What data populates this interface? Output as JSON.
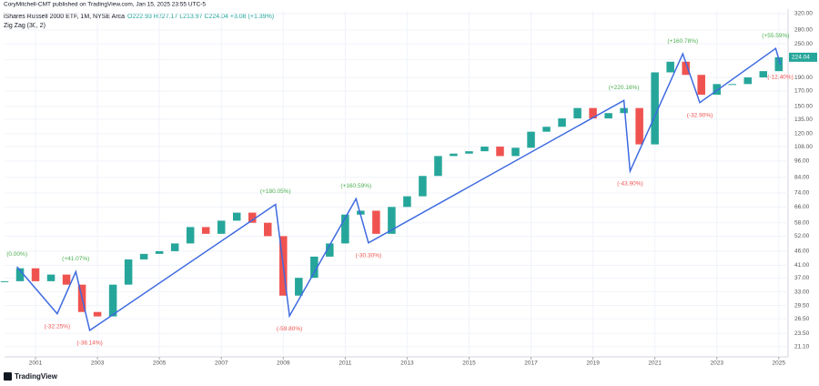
{
  "header": {
    "author": "CoryMitchell-CMT published on TradingView.com, Jan 15, 2025 23:55 UTC-5",
    "symbol": "iShares Russell 2000 ETF, 1M, NYSE Arca",
    "ohlc": "O222.93 H227.17 L213.97 C224.04 +3.08 (+1.39%)",
    "indicator": "Zig Zag (30, 2)"
  },
  "chart_data": {
    "type": "candlestick",
    "log_scale": true,
    "grid": true,
    "color_up": "#26a69a",
    "color_down": "#ef5350",
    "x": [
      2000.0,
      2000.5,
      2001.0,
      2001.5,
      2002.0,
      2002.5,
      2003.0,
      2003.5,
      2004.0,
      2004.5,
      2005.0,
      2005.5,
      2006.0,
      2006.5,
      2007.0,
      2007.5,
      2008.0,
      2008.5,
      2009.0,
      2009.5,
      2010.0,
      2010.5,
      2011.0,
      2011.5,
      2012.0,
      2012.5,
      2013.0,
      2013.5,
      2014.0,
      2014.5,
      2015.0,
      2015.5,
      2016.0,
      2016.5,
      2017.0,
      2017.5,
      2018.0,
      2018.5,
      2019.0,
      2019.5,
      2020.0,
      2020.5,
      2021.0,
      2021.5,
      2022.0,
      2022.5,
      2023.0,
      2023.5,
      2024.0,
      2024.5,
      2025.0
    ],
    "values": [
      36,
      40,
      36,
      38,
      35,
      28,
      27,
      35,
      43,
      45,
      46,
      49,
      56,
      53,
      59,
      63,
      58,
      52,
      32,
      37,
      44,
      49,
      62,
      64,
      53,
      66,
      72,
      85,
      100,
      102,
      104,
      108,
      100,
      107,
      122,
      127,
      136,
      148,
      136,
      142,
      148,
      110,
      198,
      216,
      194,
      165,
      180,
      180,
      190,
      200,
      224
    ],
    "xlim": [
      2000.0,
      2025.3
    ],
    "xticks": [
      2001,
      2003,
      2005,
      2007,
      2009,
      2011,
      2013,
      2015,
      2017,
      2019,
      2021,
      2023,
      2025
    ],
    "ylim": [
      19.7,
      327
    ],
    "yticks": [
      {
        "value": 320,
        "label": "320.00"
      },
      {
        "value": 280,
        "label": "280.00"
      },
      {
        "value": 250,
        "label": "250.00"
      },
      {
        "value": 220,
        "label": "220.00"
      },
      {
        "value": 190,
        "label": "190.00"
      },
      {
        "value": 170,
        "label": "170.00"
      },
      {
        "value": 150,
        "label": "150.00"
      },
      {
        "value": 135,
        "label": "135.00"
      },
      {
        "value": 120,
        "label": "120.00"
      },
      {
        "value": 108,
        "label": "108.00"
      },
      {
        "value": 96,
        "label": "96.00"
      },
      {
        "value": 84,
        "label": "84.00"
      },
      {
        "value": 74,
        "label": "74.00"
      },
      {
        "value": 66,
        "label": "66.00"
      },
      {
        "value": 58,
        "label": "58.00"
      },
      {
        "value": 52,
        "label": "52.00"
      },
      {
        "value": 46,
        "label": "46.00"
      },
      {
        "value": 41,
        "label": "41.00"
      },
      {
        "value": 37,
        "label": "37.00"
      },
      {
        "value": 33,
        "label": "33.00"
      },
      {
        "value": 29.5,
        "label": "29.50"
      },
      {
        "value": 26.5,
        "label": "26.50"
      },
      {
        "value": 23.5,
        "label": "23.50"
      },
      {
        "value": 21.1,
        "label": "21.10"
      }
    ],
    "zigzag": {
      "color": "#3d6ae0",
      "x": [
        2000.4,
        2001.7,
        2002.3,
        2002.75,
        2008.75,
        2009.2,
        2011.35,
        2011.75,
        2020.0,
        2020.2,
        2021.9,
        2022.45,
        2024.9,
        2025.05
      ],
      "values": [
        40.5,
        27.6,
        38.9,
        24.1,
        67.4,
        27.1,
        70.6,
        49.2,
        157.5,
        88.4,
        230.5,
        154.7,
        240.7,
        210.9
      ],
      "labels": [
        "(0.00%)",
        "(-32.25%)",
        "(+41.07%)",
        "(-38.14%)",
        "(+180.05%)",
        "(-59.80%)",
        "(+160.59%)",
        "(-30.30%)",
        "(+220.16%)",
        "(-43.90%)",
        "(+160.78%)",
        "(-32.90%)",
        "(+55.59%)",
        "(-12.40%)"
      ]
    },
    "last_price": {
      "value": 224.04,
      "label": "224.04"
    }
  },
  "footer": {
    "logo": "TradingView"
  }
}
